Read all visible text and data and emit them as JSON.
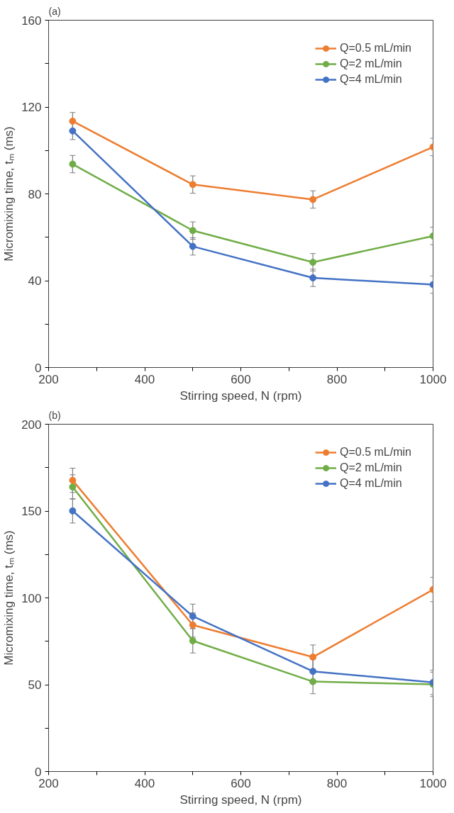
{
  "chart_data": [
    {
      "type": "line",
      "title": "(a)",
      "xlabel": "Stirring speed, N (rpm)",
      "ylabel": "Micromixing time, tₘ (ms)",
      "x": [
        250,
        500,
        750,
        1000
      ],
      "series": [
        {
          "name": "Q=0.5 mL/min",
          "color": "#ed7d31",
          "values": [
            113.5,
            84.3,
            77.4,
            101.6
          ],
          "errors": [
            4,
            4,
            4,
            4
          ]
        },
        {
          "name": "Q=2 mL/min",
          "color": "#70ad47",
          "values": [
            93.7,
            63.1,
            48.5,
            60.6
          ],
          "errors": [
            4,
            4,
            4,
            4
          ]
        },
        {
          "name": "Q=4 mL/min",
          "color": "#4472c4",
          "values": [
            109,
            55.8,
            41.3,
            38.2
          ],
          "errors": [
            4,
            4,
            4,
            4
          ]
        }
      ],
      "xlim": [
        200,
        1000
      ],
      "ylim": [
        0,
        160
      ],
      "xticks": [
        200,
        {
          "value": 300,
          "label": null
        },
        400,
        {
          "value": 500,
          "label": null
        },
        600,
        {
          "value": 700,
          "label": null
        },
        800,
        {
          "value": 900,
          "label": null
        },
        1000
      ],
      "yticks": [
        0,
        {
          "value": 20,
          "label": null
        },
        40,
        {
          "value": 60,
          "label": null
        },
        80,
        {
          "value": 100,
          "label": null
        },
        120,
        {
          "value": 140,
          "label": null
        },
        160
      ],
      "grid": false,
      "legend": "top right",
      "marker": "circle",
      "line_style": "solid"
    },
    {
      "type": "line",
      "title": "(b)",
      "xlabel": "Stirring speed, N (rpm)",
      "ylabel": "Micromixing time, tₘ (ms)",
      "x": [
        250,
        500,
        750,
        1000
      ],
      "series": [
        {
          "name": "Q=0.5 mL/min",
          "color": "#ed7d31",
          "values": [
            167.7,
            84.4,
            65.9,
            104.8
          ],
          "errors": [
            7,
            7,
            7,
            7
          ]
        },
        {
          "name": "Q=2 mL/min",
          "color": "#70ad47",
          "values": [
            163.9,
            75.3,
            51.8,
            50.2
          ],
          "errors": [
            7,
            7,
            7,
            7
          ]
        },
        {
          "name": "Q=4 mL/min",
          "color": "#4472c4",
          "values": [
            150.1,
            89.4,
            57.7,
            51.3
          ],
          "errors": [
            7,
            7,
            7,
            7
          ]
        }
      ],
      "xlim": [
        200,
        1000
      ],
      "ylim": [
        0,
        200
      ],
      "xticks": [
        200,
        {
          "value": 300,
          "label": null
        },
        400,
        {
          "value": 500,
          "label": null
        },
        600,
        {
          "value": 700,
          "label": null
        },
        800,
        {
          "value": 900,
          "label": null
        },
        1000
      ],
      "yticks": [
        0,
        {
          "value": 25,
          "label": null
        },
        50,
        {
          "value": 75,
          "label": null
        },
        100,
        {
          "value": 125,
          "label": null
        },
        150,
        {
          "value": 175,
          "label": null
        },
        200
      ],
      "grid": false,
      "legend": "top right",
      "marker": "circle",
      "line_style": "solid"
    }
  ]
}
